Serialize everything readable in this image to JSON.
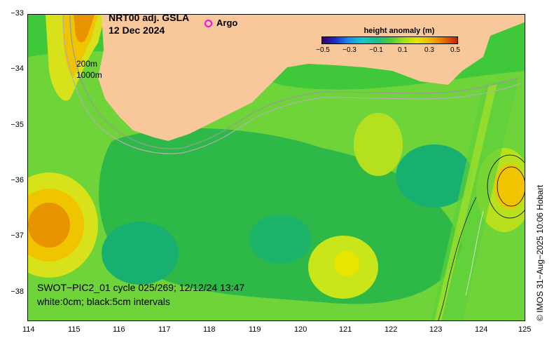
{
  "title": {
    "line1": "NRT00 adj. GSLA",
    "line2": "12 Dec 2024"
  },
  "legend": {
    "argo_label": "Argo",
    "argo_color": "#ff00ff"
  },
  "colorbar": {
    "title": "height anomaly (m)",
    "ticks": [
      "−0.5",
      "−0.3",
      "−0.1",
      "0.1",
      "0.3",
      "0.5"
    ]
  },
  "isobaths": [
    "200m",
    "1000m"
  ],
  "swot": {
    "line1": "SWOT−PIC2_01 cycle 025/269; 12/12/24 13:47",
    "line2": "white:0cm; black:5cm intervals"
  },
  "x_axis": {
    "ticks": [
      "114",
      "115",
      "116",
      "117",
      "118",
      "119",
      "120",
      "121",
      "122",
      "123",
      "124",
      "125"
    ]
  },
  "y_axis": {
    "ticks": [
      "−33",
      "−34",
      "−35",
      "−36",
      "−37",
      "−38"
    ]
  },
  "credit": "© IMOS 31−Aug−2025 10:06 Hobart",
  "colors": {
    "land": "#f8c89a",
    "ocean_base": "#3ec83a"
  }
}
